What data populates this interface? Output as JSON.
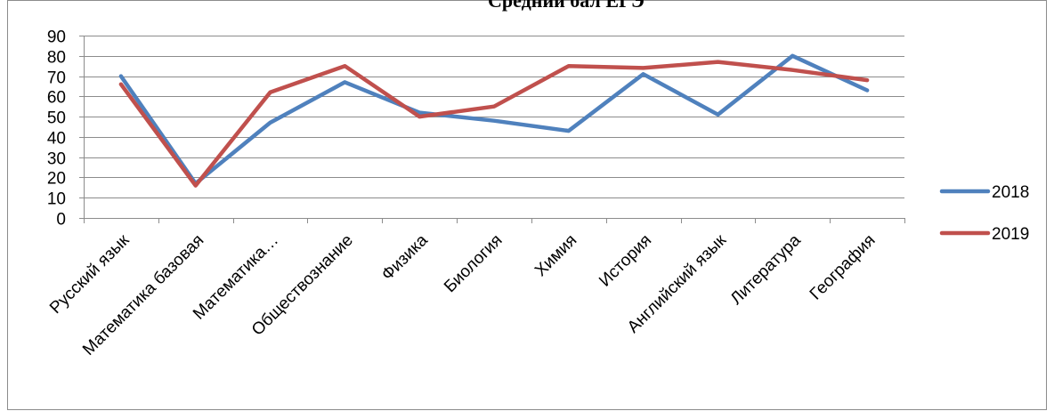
{
  "chart_data": {
    "type": "line",
    "title": "Средний бал ЕГЭ",
    "xlabel": "",
    "ylabel": "",
    "ylim": [
      0,
      90
    ],
    "y_ticks": [
      0,
      10,
      20,
      30,
      40,
      50,
      60,
      70,
      80,
      90
    ],
    "grid": "horizontal",
    "legend_position": "right",
    "categories": [
      "Русский язык",
      "Математика базовая",
      "Математика…",
      "Обществознание",
      "Физика",
      "Биология",
      "Химия",
      "История",
      "Английский язык",
      "Литература",
      "География"
    ],
    "series": [
      {
        "name": "2018",
        "color": "#4f81bd",
        "values": [
          70,
          17,
          47,
          67,
          52,
          48,
          43,
          71,
          51,
          80,
          63
        ]
      },
      {
        "name": "2019",
        "color": "#c0504d",
        "values": [
          66,
          16,
          62,
          75,
          50,
          55,
          75,
          74,
          77,
          73,
          68
        ]
      }
    ]
  }
}
